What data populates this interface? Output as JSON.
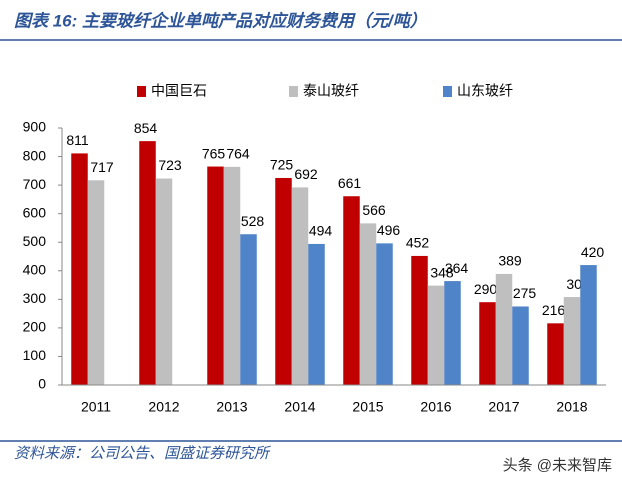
{
  "chart_data": {
    "type": "bar",
    "title": "图表 16:  主要玻纤企业单吨产品对应财务费用（元/吨）",
    "source": "资料来源：公司公告、国盛证券研究所",
    "watermark": "头条 @未来智库",
    "categories": [
      "2011",
      "2012",
      "2013",
      "2014",
      "2015",
      "2016",
      "2017",
      "2018"
    ],
    "series": [
      {
        "name": "中国巨石",
        "color": "#c00000",
        "values": [
          811,
          854,
          765,
          725,
          661,
          452,
          290,
          216
        ]
      },
      {
        "name": "泰山玻纤",
        "color": "#bfbfbf",
        "values": [
          717,
          723,
          764,
          692,
          566,
          348,
          389,
          308
        ]
      },
      {
        "name": "山东玻纤",
        "color": "#5084c8",
        "values": [
          null,
          null,
          528,
          494,
          496,
          364,
          275,
          420
        ]
      }
    ],
    "ylim": [
      0,
      900
    ],
    "yticks": [
      0,
      100,
      200,
      300,
      400,
      500,
      600,
      700,
      800,
      900
    ],
    "grid": false
  }
}
